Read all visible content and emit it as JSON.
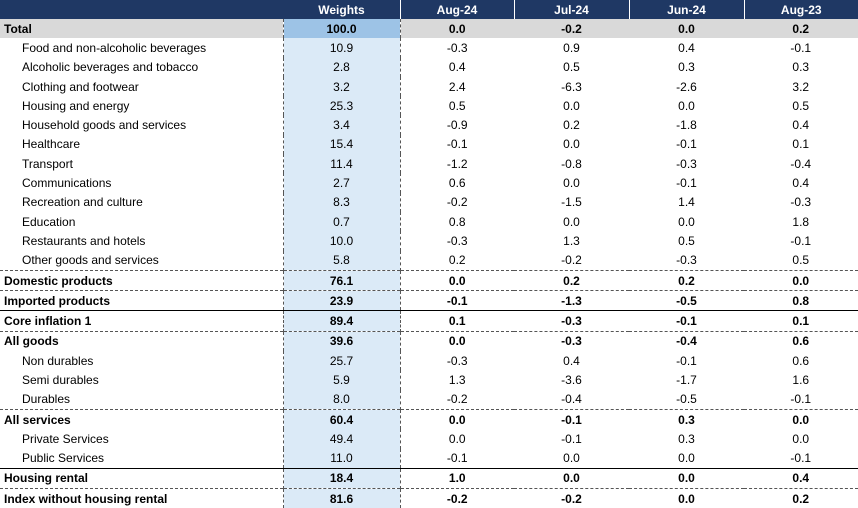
{
  "headers": [
    "",
    "Weights",
    "Aug-24",
    "Jul-24",
    "Jun-24",
    "Aug-23"
  ],
  "rows": [
    {
      "label": "Total",
      "values": [
        "100.0",
        "0.0",
        "-0.2",
        "0.0",
        "0.2"
      ],
      "style": "total"
    },
    {
      "label": "Food and non-alcoholic beverages",
      "values": [
        "10.9",
        "-0.3",
        "0.9",
        "0.4",
        "-0.1"
      ],
      "style": "indent"
    },
    {
      "label": "Alcoholic beverages and tobacco",
      "values": [
        "2.8",
        "0.4",
        "0.5",
        "0.3",
        "0.3"
      ],
      "style": "indent"
    },
    {
      "label": "Clothing and footwear",
      "values": [
        "3.2",
        "2.4",
        "-6.3",
        "-2.6",
        "3.2"
      ],
      "style": "indent"
    },
    {
      "label": "Housing and energy",
      "values": [
        "25.3",
        "0.5",
        "0.0",
        "0.0",
        "0.5"
      ],
      "style": "indent"
    },
    {
      "label": "Household goods and services",
      "values": [
        "3.4",
        "-0.9",
        "0.2",
        "-1.8",
        "0.4"
      ],
      "style": "indent"
    },
    {
      "label": "Healthcare",
      "values": [
        "15.4",
        "-0.1",
        "0.0",
        "-0.1",
        "0.1"
      ],
      "style": "indent"
    },
    {
      "label": "Transport",
      "values": [
        "11.4",
        "-1.2",
        "-0.8",
        "-0.3",
        "-0.4"
      ],
      "style": "indent"
    },
    {
      "label": "Communications",
      "values": [
        "2.7",
        "0.6",
        "0.0",
        "-0.1",
        "0.4"
      ],
      "style": "indent"
    },
    {
      "label": "Recreation and culture",
      "values": [
        "8.3",
        "-0.2",
        "-1.5",
        "1.4",
        "-0.3"
      ],
      "style": "indent"
    },
    {
      "label": "Education",
      "values": [
        "0.7",
        "0.8",
        "0.0",
        "0.0",
        "1.8"
      ],
      "style": "indent"
    },
    {
      "label": "Restaurants and hotels",
      "values": [
        "10.0",
        "-0.3",
        "1.3",
        "0.5",
        "-0.1"
      ],
      "style": "indent"
    },
    {
      "label": "Other goods and services",
      "values": [
        "5.8",
        "0.2",
        "-0.2",
        "-0.3",
        "0.5"
      ],
      "style": "indent"
    },
    {
      "label": "Domestic products",
      "values": [
        "76.1",
        "0.0",
        "0.2",
        "0.2",
        "0.0"
      ],
      "style": "bold",
      "sep": "dash"
    },
    {
      "label": "Imported products",
      "values": [
        "23.9",
        "-0.1",
        "-1.3",
        "-0.5",
        "0.8"
      ],
      "style": "bold",
      "sep": "dash"
    },
    {
      "label": "Core inflation 1",
      "values": [
        "89.4",
        "0.1",
        "-0.3",
        "-0.1",
        "0.1"
      ],
      "style": "bold",
      "sep": "solid"
    },
    {
      "label": "All goods",
      "values": [
        "39.6",
        "0.0",
        "-0.3",
        "-0.4",
        "0.6"
      ],
      "style": "bold",
      "sep": "dash"
    },
    {
      "label": "Non durables",
      "values": [
        "25.7",
        "-0.3",
        "0.4",
        "-0.1",
        "0.6"
      ],
      "style": "indent"
    },
    {
      "label": "Semi durables",
      "values": [
        "5.9",
        "1.3",
        "-3.6",
        "-1.7",
        "1.6"
      ],
      "style": "indent"
    },
    {
      "label": "Durables",
      "values": [
        "8.0",
        "-0.2",
        "-0.4",
        "-0.5",
        "-0.1"
      ],
      "style": "indent"
    },
    {
      "label": "All services",
      "values": [
        "60.4",
        "0.0",
        "-0.1",
        "0.3",
        "0.0"
      ],
      "style": "bold",
      "sep": "dash"
    },
    {
      "label": "Private Services",
      "values": [
        "49.4",
        "0.0",
        "-0.1",
        "0.3",
        "0.0"
      ],
      "style": "indent"
    },
    {
      "label": "Public Services",
      "values": [
        "11.0",
        "-0.1",
        "0.0",
        "0.0",
        "-0.1"
      ],
      "style": "indent"
    },
    {
      "label": "Housing rental",
      "values": [
        "18.4",
        "1.0",
        "0.0",
        "0.0",
        "0.4"
      ],
      "style": "bold",
      "sep": "solid"
    },
    {
      "label": "Index without housing rental",
      "values": [
        "81.6",
        "-0.2",
        "-0.2",
        "0.0",
        "0.2"
      ],
      "style": "bold",
      "sep": "dash"
    }
  ]
}
